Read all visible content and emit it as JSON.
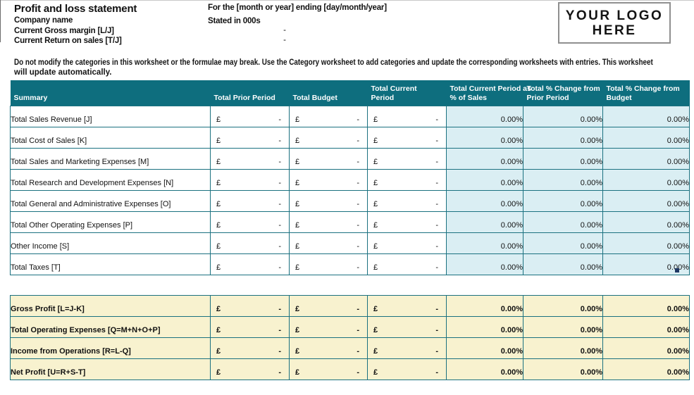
{
  "header": {
    "title": "Profit and loss statement",
    "company_label": "Company name",
    "gross_margin_label": "Current Gross margin [L/J]",
    "return_on_sales_label": "Current Return on sales [T/J]",
    "gross_margin_value": "-",
    "return_on_sales_value": "-",
    "period_label": "For the [month or year] ending [day/month/year]",
    "stated_label": "Stated in 000s",
    "logo_line1": "YOUR LOGO",
    "logo_line2": "HERE",
    "warning_line1": "Do not modify the categories in this worksheet or the formulae may break. Use the Category worksheet to add categories and update the corresponding worksheets with entries. This worksheet",
    "warning_line2": "will update automatically."
  },
  "colors": {
    "teal_header": "#0E6E7E",
    "grid_border": "#1B7180",
    "light_blue": "#DAEEF3",
    "pale_yellow": "#F8F2CF",
    "header_text": "#FFFFFF",
    "fill_handle": "#1F3864"
  },
  "summary_table": {
    "currency_symbol": "£",
    "headers": [
      "Summary",
      "Total Prior Period",
      "Total Budget",
      "Total Current\nPeriod",
      "Total Current Period as\n% of Sales",
      "Total % Change from\nPrior Period",
      "Total % Change from\nBudget"
    ],
    "rows": [
      {
        "label": "Total Sales Revenue [J]",
        "prior": "-",
        "budget": "-",
        "current": "-",
        "pct_of_sales": "0.00%",
        "pct_change_prior": "0.00%",
        "pct_change_budget": "0.00%"
      },
      {
        "label": "Total Cost of Sales [K]",
        "prior": "-",
        "budget": "-",
        "current": "-",
        "pct_of_sales": "0.00%",
        "pct_change_prior": "0.00%",
        "pct_change_budget": "0.00%"
      },
      {
        "label": "Total Sales and Marketing Expenses [M]",
        "prior": "-",
        "budget": "-",
        "current": "-",
        "pct_of_sales": "0.00%",
        "pct_change_prior": "0.00%",
        "pct_change_budget": "0.00%"
      },
      {
        "label": "Total Research and Development Expenses [N]",
        "prior": "-",
        "budget": "-",
        "current": "-",
        "pct_of_sales": "0.00%",
        "pct_change_prior": "0.00%",
        "pct_change_budget": "0.00%"
      },
      {
        "label": "Total General and Administrative Expenses [O]",
        "prior": "-",
        "budget": "-",
        "current": "-",
        "pct_of_sales": "0.00%",
        "pct_change_prior": "0.00%",
        "pct_change_budget": "0.00%"
      },
      {
        "label": "Total Other Operating Expenses [P]",
        "prior": "-",
        "budget": "-",
        "current": "-",
        "pct_of_sales": "0.00%",
        "pct_change_prior": "0.00%",
        "pct_change_budget": "0.00%"
      },
      {
        "label": "Other Income [S]",
        "prior": "-",
        "budget": "-",
        "current": "-",
        "pct_of_sales": "0.00%",
        "pct_change_prior": "0.00%",
        "pct_change_budget": "0.00%"
      },
      {
        "label": "Total Taxes [T]",
        "prior": "-",
        "budget": "-",
        "current": "-",
        "pct_of_sales": "0.00%",
        "pct_change_prior": "0.00%",
        "pct_change_budget": "0.00%"
      }
    ]
  },
  "totals_table": {
    "currency_symbol": "£",
    "rows": [
      {
        "label": "Gross Profit [L=J-K]",
        "prior": "-",
        "budget": "-",
        "current": "-",
        "pct_of_sales": "0.00%",
        "pct_change_prior": "0.00%",
        "pct_change_budget": "0.00%"
      },
      {
        "label": "Total Operating Expenses [Q=M+N+O+P]",
        "prior": "-",
        "budget": "-",
        "current": "-",
        "pct_of_sales": "0.00%",
        "pct_change_prior": "0.00%",
        "pct_change_budget": "0.00%"
      },
      {
        "label": "Income from Operations [R=L-Q]",
        "prior": "-",
        "budget": "-",
        "current": "-",
        "pct_of_sales": "0.00%",
        "pct_change_prior": "0.00%",
        "pct_change_budget": "0.00%"
      },
      {
        "label": "Net Profit [U=R+S-T]",
        "prior": "-",
        "budget": "-",
        "current": "-",
        "pct_of_sales": "0.00%",
        "pct_change_prior": "0.00%",
        "pct_change_budget": "0.00%"
      }
    ]
  }
}
